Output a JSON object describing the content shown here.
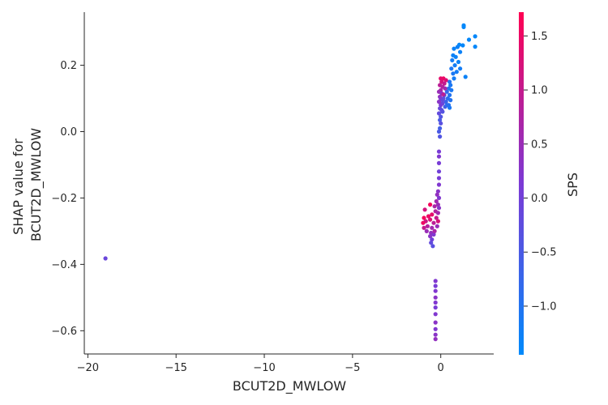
{
  "chart_data": {
    "type": "scatter",
    "xlabel": "BCUT2D_MWLOW",
    "ylabel_lines": [
      "SHAP value for",
      "BCUT2D_MWLOW"
    ],
    "xlim": [
      -20.2,
      3.0
    ],
    "ylim": [
      -0.67,
      0.36
    ],
    "x_ticks": [
      {
        "value": -20,
        "label": "−20"
      },
      {
        "value": -15,
        "label": "−15"
      },
      {
        "value": -10,
        "label": "−10"
      },
      {
        "value": -5,
        "label": "−5"
      },
      {
        "value": 0,
        "label": "0"
      }
    ],
    "y_ticks": [
      {
        "value": 0.2,
        "label": "0.2"
      },
      {
        "value": 0.0,
        "label": "0.0"
      },
      {
        "value": -0.2,
        "label": "−0.2"
      },
      {
        "value": -0.4,
        "label": "−0.4"
      },
      {
        "value": -0.6,
        "label": "−0.6"
      }
    ],
    "colorbar": {
      "label": "SPS",
      "range": [
        -1.45,
        1.72
      ],
      "ticks": [
        {
          "value": 1.5,
          "label": "1.5"
        },
        {
          "value": 1.0,
          "label": "1.0"
        },
        {
          "value": 0.5,
          "label": "0.5"
        },
        {
          "value": 0.0,
          "label": "0.0"
        },
        {
          "value": -0.5,
          "label": "−0.5"
        },
        {
          "value": -1.0,
          "label": "−1.0"
        }
      ],
      "low_color": "#008afb",
      "mid_color": "#7c3ad5",
      "high_color": "#ff0052"
    },
    "grid": false,
    "points": [
      {
        "x": -19.0,
        "y": -0.382,
        "c": -0.1
      },
      {
        "x": 1.3,
        "y": 0.32,
        "c": -1.4
      },
      {
        "x": 1.3,
        "y": 0.315,
        "c": -1.4
      },
      {
        "x": 1.95,
        "y": 0.287,
        "c": -1.4
      },
      {
        "x": 1.6,
        "y": 0.277,
        "c": -1.4
      },
      {
        "x": 1.95,
        "y": 0.256,
        "c": -1.4
      },
      {
        "x": 1.25,
        "y": 0.26,
        "c": -1.4
      },
      {
        "x": 1.05,
        "y": 0.262,
        "c": -1.4
      },
      {
        "x": 0.95,
        "y": 0.255,
        "c": -1.3
      },
      {
        "x": 1.1,
        "y": 0.24,
        "c": -1.3
      },
      {
        "x": 0.75,
        "y": 0.25,
        "c": -1.3
      },
      {
        "x": 0.7,
        "y": 0.23,
        "c": -1.3
      },
      {
        "x": 0.85,
        "y": 0.225,
        "c": -1.3
      },
      {
        "x": 1.0,
        "y": 0.21,
        "c": -1.3
      },
      {
        "x": 0.65,
        "y": 0.215,
        "c": -1.2
      },
      {
        "x": 0.8,
        "y": 0.2,
        "c": -1.2
      },
      {
        "x": 1.1,
        "y": 0.19,
        "c": -1.2
      },
      {
        "x": 1.4,
        "y": 0.165,
        "c": -1.3
      },
      {
        "x": 0.9,
        "y": 0.18,
        "c": -1.2
      },
      {
        "x": 0.6,
        "y": 0.19,
        "c": -1.1
      },
      {
        "x": 0.7,
        "y": 0.175,
        "c": -1.1
      },
      {
        "x": 0.75,
        "y": 0.16,
        "c": -1.2
      },
      {
        "x": 0.5,
        "y": 0.15,
        "c": -1.0
      },
      {
        "x": 0.55,
        "y": 0.14,
        "c": -1.1
      },
      {
        "x": 0.45,
        "y": 0.13,
        "c": -1.0
      },
      {
        "x": 0.6,
        "y": 0.125,
        "c": -1.1
      },
      {
        "x": 0.35,
        "y": 0.12,
        "c": -0.8
      },
      {
        "x": 0.5,
        "y": 0.11,
        "c": -1.0
      },
      {
        "x": 0.4,
        "y": 0.1,
        "c": -0.9
      },
      {
        "x": 0.55,
        "y": 0.095,
        "c": -1.0
      },
      {
        "x": 0.3,
        "y": 0.09,
        "c": -0.7
      },
      {
        "x": 0.45,
        "y": 0.08,
        "c": -1.0
      },
      {
        "x": 0.5,
        "y": 0.072,
        "c": -1.1
      },
      {
        "x": 0.25,
        "y": 0.075,
        "c": -0.6
      },
      {
        "x": 0.2,
        "y": 0.11,
        "c": -0.5
      },
      {
        "x": 0.15,
        "y": 0.1,
        "c": -0.3
      },
      {
        "x": 0.35,
        "y": 0.08,
        "c": -0.9
      },
      {
        "x": 0.1,
        "y": 0.085,
        "c": -0.2
      },
      {
        "x": 0.1,
        "y": 0.06,
        "c": -0.4
      },
      {
        "x": 0.0,
        "y": 0.16,
        "c": 1.4
      },
      {
        "x": 0.15,
        "y": 0.16,
        "c": 1.5
      },
      {
        "x": 0.3,
        "y": 0.155,
        "c": 1.3
      },
      {
        "x": 0.05,
        "y": 0.15,
        "c": 1.2
      },
      {
        "x": 0.2,
        "y": 0.145,
        "c": 1.0
      },
      {
        "x": -0.05,
        "y": 0.14,
        "c": 0.9
      },
      {
        "x": 0.1,
        "y": 0.135,
        "c": 0.8
      },
      {
        "x": 0.25,
        "y": 0.13,
        "c": 0.6
      },
      {
        "x": 0.0,
        "y": 0.125,
        "c": 0.7
      },
      {
        "x": -0.1,
        "y": 0.12,
        "c": 0.5
      },
      {
        "x": 0.05,
        "y": 0.115,
        "c": 0.3
      },
      {
        "x": 0.15,
        "y": 0.112,
        "c": 0.9
      },
      {
        "x": -0.05,
        "y": 0.105,
        "c": 0.4
      },
      {
        "x": 0.0,
        "y": 0.1,
        "c": 0.2
      },
      {
        "x": 0.1,
        "y": 0.095,
        "c": -0.2
      },
      {
        "x": -0.1,
        "y": 0.09,
        "c": 0.3
      },
      {
        "x": 0.0,
        "y": 0.08,
        "c": 0.1
      },
      {
        "x": -0.05,
        "y": 0.07,
        "c": -0.1
      },
      {
        "x": 0.05,
        "y": 0.065,
        "c": -0.3
      },
      {
        "x": -0.1,
        "y": 0.055,
        "c": -0.2
      },
      {
        "x": 0.0,
        "y": 0.045,
        "c": -0.4
      },
      {
        "x": -0.05,
        "y": 0.035,
        "c": -0.5
      },
      {
        "x": 0.0,
        "y": 0.025,
        "c": -0.3
      },
      {
        "x": -0.05,
        "y": 0.01,
        "c": -0.6
      },
      {
        "x": -0.1,
        "y": 0.0,
        "c": -0.5
      },
      {
        "x": -0.05,
        "y": -0.015,
        "c": -0.4
      },
      {
        "x": -0.1,
        "y": -0.06,
        "c": 0.1
      },
      {
        "x": -0.1,
        "y": -0.075,
        "c": 0.2
      },
      {
        "x": -0.1,
        "y": -0.095,
        "c": 0.1
      },
      {
        "x": -0.1,
        "y": -0.12,
        "c": 0.0
      },
      {
        "x": -0.1,
        "y": -0.14,
        "c": 0.1
      },
      {
        "x": -0.1,
        "y": -0.16,
        "c": 0.2
      },
      {
        "x": -0.15,
        "y": -0.18,
        "c": 0.3
      },
      {
        "x": -0.2,
        "y": -0.19,
        "c": 0.4
      },
      {
        "x": -0.1,
        "y": -0.2,
        "c": 0.2
      },
      {
        "x": -0.25,
        "y": -0.21,
        "c": 0.6
      },
      {
        "x": -0.15,
        "y": -0.22,
        "c": 0.5
      },
      {
        "x": -0.1,
        "y": -0.23,
        "c": 0.3
      },
      {
        "x": -0.35,
        "y": -0.225,
        "c": 0.7
      },
      {
        "x": -0.6,
        "y": -0.22,
        "c": 1.6
      },
      {
        "x": -0.3,
        "y": -0.24,
        "c": 0.8
      },
      {
        "x": -0.15,
        "y": -0.245,
        "c": 0.6
      },
      {
        "x": -0.9,
        "y": -0.235,
        "c": 1.2
      },
      {
        "x": -0.5,
        "y": -0.25,
        "c": 1.4
      },
      {
        "x": -0.7,
        "y": -0.255,
        "c": 1.5
      },
      {
        "x": -0.95,
        "y": -0.26,
        "c": 1.6
      },
      {
        "x": -0.25,
        "y": -0.26,
        "c": 1.0
      },
      {
        "x": -0.6,
        "y": -0.265,
        "c": 1.3
      },
      {
        "x": -0.85,
        "y": -0.27,
        "c": 1.1
      },
      {
        "x": -1.0,
        "y": -0.275,
        "c": 1.5
      },
      {
        "x": -0.4,
        "y": -0.275,
        "c": 0.9
      },
      {
        "x": -0.15,
        "y": -0.27,
        "c": 1.2
      },
      {
        "x": -0.75,
        "y": -0.285,
        "c": 0.8
      },
      {
        "x": -0.95,
        "y": -0.29,
        "c": 1.0
      },
      {
        "x": -0.5,
        "y": -0.29,
        "c": 0.6
      },
      {
        "x": -0.8,
        "y": -0.3,
        "c": 0.5
      },
      {
        "x": -0.55,
        "y": -0.305,
        "c": 0.4
      },
      {
        "x": -0.4,
        "y": -0.31,
        "c": 0.2
      },
      {
        "x": -0.6,
        "y": -0.315,
        "c": 0.3
      },
      {
        "x": -0.5,
        "y": -0.325,
        "c": 0.0
      },
      {
        "x": -0.55,
        "y": -0.335,
        "c": -0.2
      },
      {
        "x": -0.45,
        "y": -0.345,
        "c": -0.3
      },
      {
        "x": -0.35,
        "y": -0.3,
        "c": 0.7
      },
      {
        "x": -0.2,
        "y": -0.285,
        "c": 0.5
      },
      {
        "x": -0.3,
        "y": -0.45,
        "c": 0.2
      },
      {
        "x": -0.3,
        "y": -0.465,
        "c": 0.1
      },
      {
        "x": -0.3,
        "y": -0.48,
        "c": 0.2
      },
      {
        "x": -0.3,
        "y": -0.5,
        "c": 0.3
      },
      {
        "x": -0.3,
        "y": -0.515,
        "c": 0.2
      },
      {
        "x": -0.3,
        "y": -0.53,
        "c": 0.1
      },
      {
        "x": -0.3,
        "y": -0.55,
        "c": 0.2
      },
      {
        "x": -0.3,
        "y": -0.575,
        "c": 0.3
      },
      {
        "x": -0.3,
        "y": -0.595,
        "c": 0.2
      },
      {
        "x": -0.3,
        "y": -0.612,
        "c": 0.3
      },
      {
        "x": -0.3,
        "y": -0.625,
        "c": 0.4
      }
    ]
  }
}
